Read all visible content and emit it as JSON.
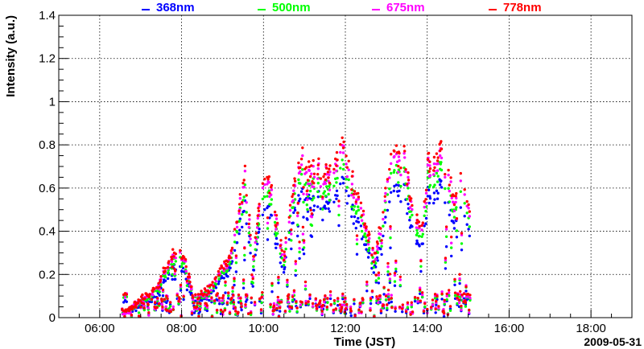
{
  "chart_data": {
    "type": "scatter",
    "title": "",
    "xlabel": "Time (JST)",
    "ylabel": "Intensity (a.u.)",
    "date": "2009-05-31",
    "x_unit": "hour of day (JST)",
    "xlim": [
      5.0,
      19.0
    ],
    "ylim": [
      0,
      1.4
    ],
    "x_ticks": [
      {
        "v": 6,
        "label": "06:00"
      },
      {
        "v": 8,
        "label": "08:00"
      },
      {
        "v": 10,
        "label": "10:00"
      },
      {
        "v": 12,
        "label": "12:00"
      },
      {
        "v": 14,
        "label": "14:00"
      },
      {
        "v": 16,
        "label": "16:00"
      },
      {
        "v": 18,
        "label": "18:00"
      }
    ],
    "y_ticks": [
      {
        "v": 0,
        "label": "0"
      },
      {
        "v": 0.2,
        "label": "0.2"
      },
      {
        "v": 0.4,
        "label": "0.4"
      },
      {
        "v": 0.6,
        "label": "0.6"
      },
      {
        "v": 0.8,
        "label": "0.8"
      },
      {
        "v": 1.0,
        "label": "1"
      },
      {
        "v": 1.2,
        "label": "1.2"
      },
      {
        "v": 1.4,
        "label": "1.4"
      }
    ],
    "grid": true,
    "legend_position": "top",
    "series": [
      {
        "name": "368nm",
        "color": "#0000ff",
        "scale": 0.78
      },
      {
        "name": "500nm",
        "color": "#00ff00",
        "scale": 0.88
      },
      {
        "name": "675nm",
        "color": "#ff00ff",
        "scale": 0.96
      },
      {
        "name": "778nm",
        "color": "#ff0000",
        "scale": 1.0
      }
    ],
    "envelope_778nm": [
      [
        6.55,
        0.04
      ],
      [
        6.65,
        0.03
      ],
      [
        7.45,
        0.16
      ],
      [
        7.6,
        0.25
      ],
      [
        7.75,
        0.3
      ],
      [
        7.9,
        0.33
      ],
      [
        8.05,
        0.3
      ],
      [
        8.2,
        0.2
      ],
      [
        8.3,
        0.08
      ],
      [
        8.8,
        0.18
      ],
      [
        9.0,
        0.25
      ],
      [
        9.2,
        0.3
      ],
      [
        9.4,
        0.55
      ],
      [
        9.55,
        0.7
      ],
      [
        9.75,
        0.3
      ],
      [
        9.95,
        0.66
      ],
      [
        10.15,
        0.68
      ],
      [
        10.3,
        0.5
      ],
      [
        10.5,
        0.3
      ],
      [
        10.7,
        0.6
      ],
      [
        10.9,
        0.8
      ],
      [
        11.0,
        0.79
      ],
      [
        11.15,
        0.7
      ],
      [
        11.3,
        0.77
      ],
      [
        11.45,
        0.7
      ],
      [
        11.6,
        0.76
      ],
      [
        11.75,
        0.73
      ],
      [
        11.9,
        0.88
      ],
      [
        12.05,
        0.8
      ],
      [
        12.15,
        0.7
      ],
      [
        12.3,
        0.6
      ],
      [
        12.5,
        0.45
      ],
      [
        12.7,
        0.3
      ],
      [
        12.85,
        0.44
      ],
      [
        13.0,
        0.65
      ],
      [
        13.15,
        0.8
      ],
      [
        13.3,
        0.8
      ],
      [
        13.45,
        0.8
      ],
      [
        13.6,
        0.6
      ],
      [
        13.85,
        0.4
      ],
      [
        14.05,
        0.82
      ],
      [
        14.2,
        0.8
      ],
      [
        14.35,
        0.82
      ],
      [
        14.5,
        0.76
      ],
      [
        14.65,
        0.6
      ],
      [
        14.8,
        0.7
      ],
      [
        14.95,
        0.65
      ],
      [
        15.05,
        0.5
      ]
    ]
  }
}
